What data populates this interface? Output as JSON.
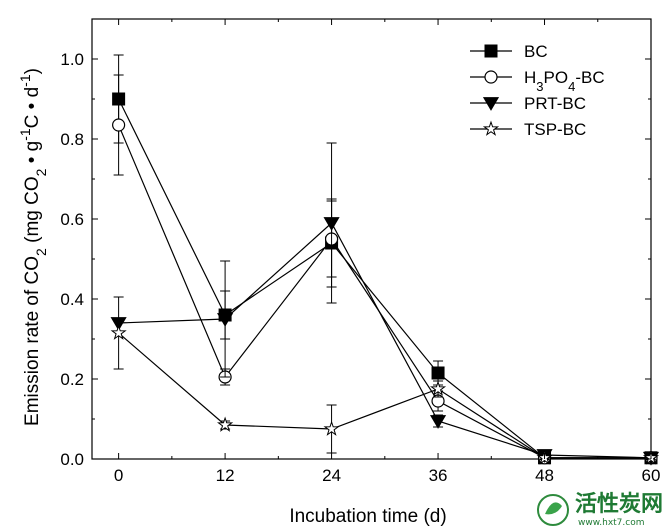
{
  "chart_data": {
    "type": "line",
    "xlabel": "Incubation time (d)",
    "ylabel": {
      "parts": [
        "Emission rate of CO",
        "2",
        " (mg CO",
        "2",
        " • g",
        "-1",
        "C • d",
        "-1",
        ")"
      ]
    },
    "x_ticks": [
      "0",
      "12",
      "24",
      "36",
      "48",
      "60"
    ],
    "y_ticks": [
      "0.0",
      "0.2",
      "0.4",
      "0.6",
      "0.8",
      "1.0"
    ],
    "xlim": [
      -3,
      60
    ],
    "ylim": [
      0,
      1.1
    ],
    "legend_position": "top-right",
    "series": [
      {
        "name": "BC",
        "marker": "square-filled",
        "x": [
          0,
          12,
          24,
          36,
          48,
          60
        ],
        "y": [
          0.9,
          0.36,
          0.54,
          0.215,
          0.003,
          0.003
        ],
        "err": [
          0.11,
          0.06,
          0.11,
          0.03,
          0.01,
          0.005
        ]
      },
      {
        "name": "H3PO4-BC",
        "label_parts": [
          "H",
          "3",
          "PO",
          "4",
          "-BC"
        ],
        "marker": "circle-open",
        "x": [
          0,
          12,
          24,
          36,
          48,
          60
        ],
        "y": [
          0.835,
          0.205,
          0.55,
          0.145,
          0.003,
          0.003
        ],
        "err": [
          0.125,
          0.02,
          0.095,
          0.025,
          0.01,
          0.005
        ]
      },
      {
        "name": "PRT-BC",
        "marker": "triangle-down-filled",
        "x": [
          0,
          12,
          24,
          36,
          48,
          60
        ],
        "y": [
          0.34,
          0.35,
          0.59,
          0.095,
          0.01,
          0.003
        ],
        "err": [
          0.0,
          0.145,
          0.2,
          0.015,
          0.01,
          0.005
        ]
      },
      {
        "name": "TSP-BC",
        "marker": "star-open",
        "x": [
          0,
          12,
          24,
          36,
          48,
          60
        ],
        "y": [
          0.315,
          0.085,
          0.075,
          0.175,
          0.003,
          0.003
        ],
        "err": [
          0.09,
          0.01,
          0.06,
          0.02,
          0.005,
          0.005
        ]
      }
    ]
  },
  "watermark": {
    "text": "活性炭网",
    "url": "www.hxt7.com"
  }
}
